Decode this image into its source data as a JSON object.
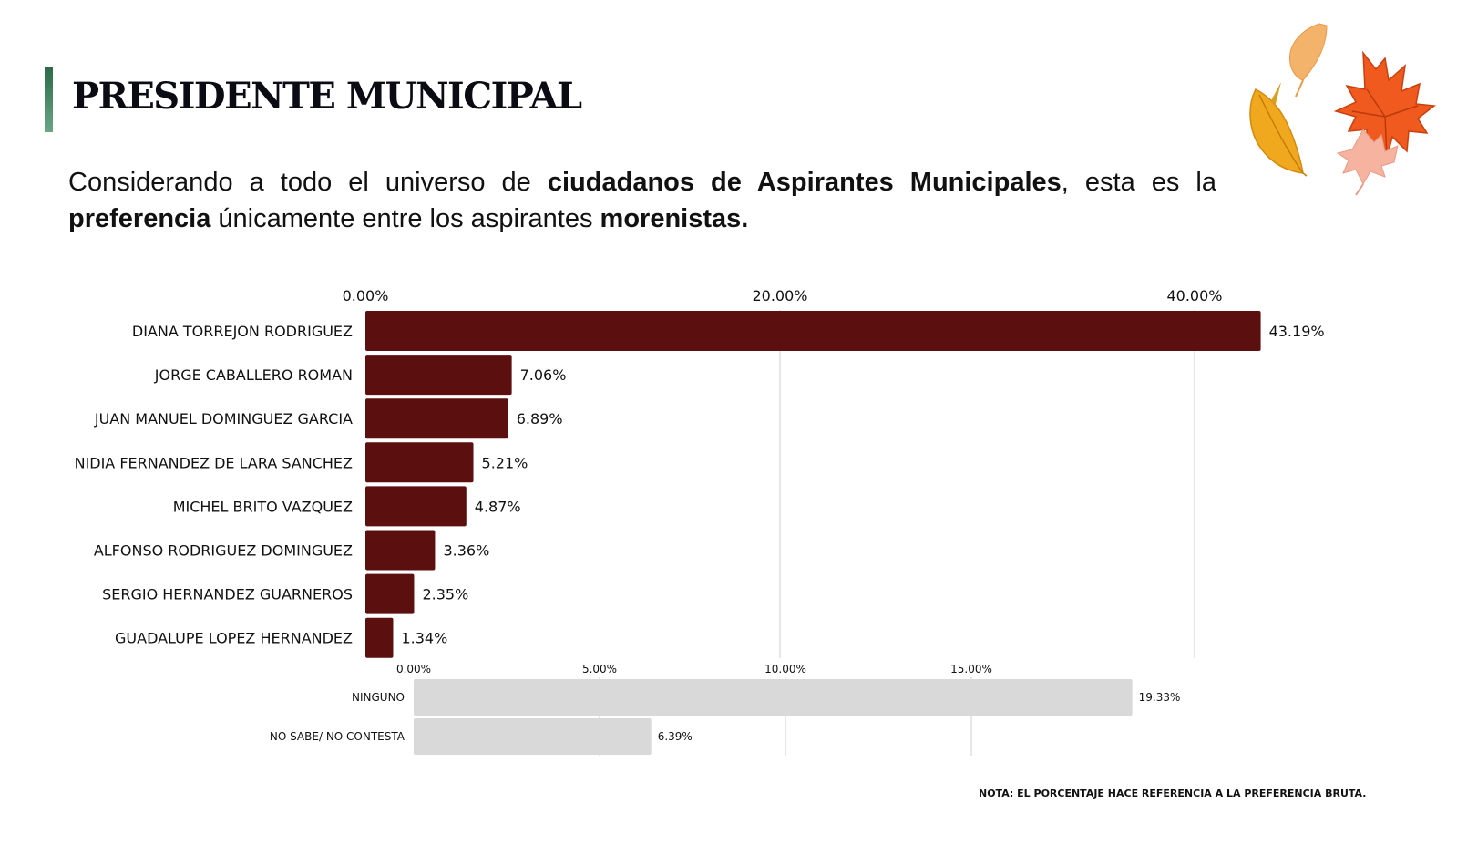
{
  "header": {
    "title": "PRESIDENTE MUNICIPAL",
    "accent_color": "#3e7d58"
  },
  "intro": {
    "parts": [
      {
        "text": "Considerando a todo el universo de ",
        "bold": false
      },
      {
        "text": "ciudadanos de Aspirantes Municipales",
        "bold": true
      },
      {
        "text": ", esta es la ",
        "bold": false
      },
      {
        "text": "preferencia",
        "bold": true
      },
      {
        "text": " únicamente entre los aspirantes ",
        "bold": false
      },
      {
        "text": "morenistas.",
        "bold": true
      }
    ]
  },
  "decoration": {
    "icon": "autumn-leaves-icon"
  },
  "note": "NOTA: EL PORCENTAJE HACE REFERENCIA A LA PREFERENCIA BRUTA.",
  "chart_data": [
    {
      "type": "bar",
      "orientation": "horizontal",
      "title": "",
      "xlabel": "",
      "ylabel": "",
      "xlim": [
        0,
        43.19
      ],
      "ticks": [
        0,
        20,
        40
      ],
      "tick_labels": [
        "0.00%",
        "20.00%",
        "40.00%"
      ],
      "tick_position": "top",
      "grid": true,
      "bar_color": "#5c0f0f",
      "categories": [
        "DIANA TORREJON RODRIGUEZ",
        "JORGE CABALLERO ROMAN",
        "JUAN MANUEL DOMINGUEZ GARCIA",
        "NIDIA FERNANDEZ DE LARA SANCHEZ",
        "MICHEL BRITO VAZQUEZ",
        "ALFONSO RODRIGUEZ DOMINGUEZ",
        "SERGIO HERNANDEZ GUARNEROS",
        "GUADALUPE LOPEZ HERNANDEZ"
      ],
      "values": [
        43.19,
        7.06,
        6.89,
        5.21,
        4.87,
        3.36,
        2.35,
        1.34
      ],
      "value_labels": [
        "43.19%",
        "7.06%",
        "6.89%",
        "5.21%",
        "4.87%",
        "3.36%",
        "2.35%",
        "1.34%"
      ]
    },
    {
      "type": "bar",
      "orientation": "horizontal",
      "title": "",
      "xlabel": "",
      "ylabel": "",
      "xlim": [
        0,
        19.33
      ],
      "ticks": [
        0,
        5,
        10,
        15
      ],
      "tick_labels": [
        "0.00%",
        "5.00%",
        "10.00%",
        "15.00%"
      ],
      "tick_position": "top",
      "grid": true,
      "bar_color": "#d9d9d9",
      "categories": [
        "NINGUNO",
        "NO SABE/ NO CONTESTA"
      ],
      "values": [
        19.33,
        6.39
      ],
      "value_labels": [
        "19.33%",
        "6.39%"
      ]
    }
  ]
}
